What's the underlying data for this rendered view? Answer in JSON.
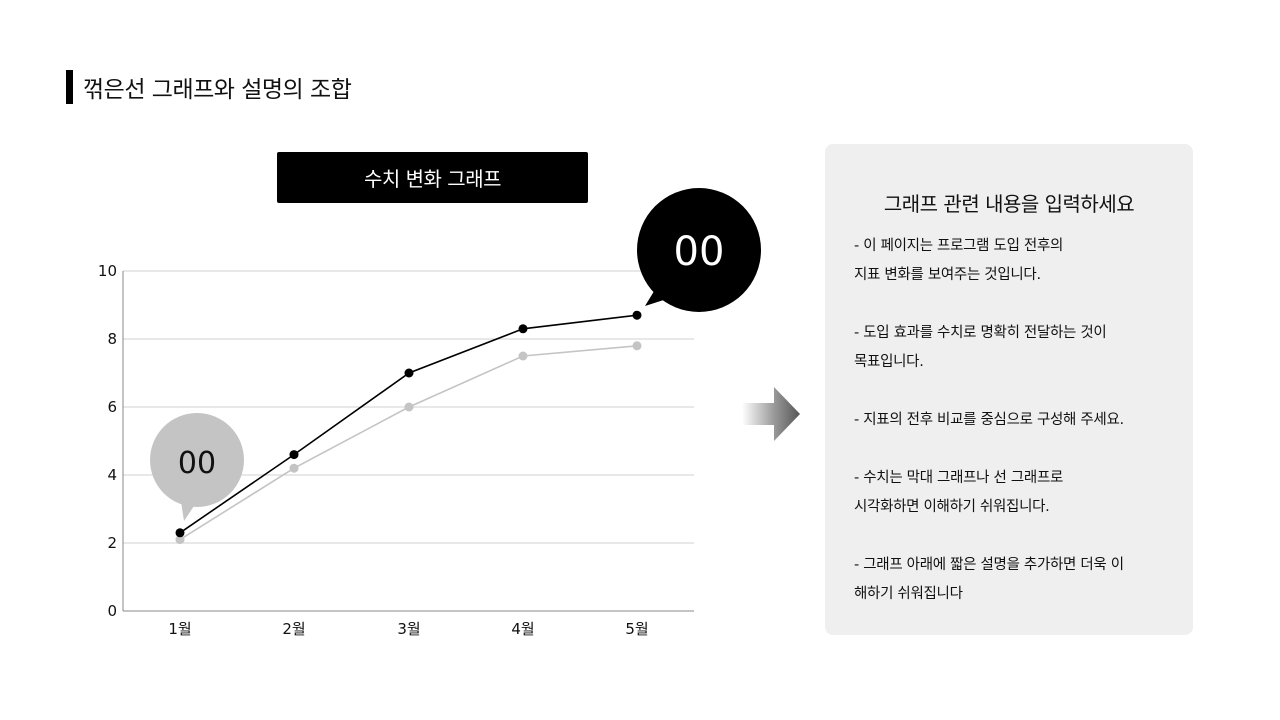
{
  "page": {
    "title": "꺾은선 그래프와 설명의 조합"
  },
  "chart_header": {
    "label": "수치 변화 그래프"
  },
  "callouts": {
    "top_right": "00",
    "bottom_left": "00"
  },
  "panel": {
    "heading": "그래프 관련 내용을 입력하세요",
    "paragraphs": [
      "- 이 페이지는 프로그램 도입 전후의\n지표 변화를 보여주는 것입니다.",
      "- 도입 효과를 수치로 명확히 전달하는 것이\n목표입니다.",
      "- 지표의 전후 비교를 중심으로 구성해 주세요.",
      "- 수치는 막대 그래프나 선 그래프로\n시각화하면 이해하기 쉬워집니다.",
      "- 그래프 아래에 짧은 설명을 추가하면 더욱 이\n해하기 쉬워집니다"
    ]
  },
  "colors": {
    "series_primary": "#000000",
    "series_secondary": "#c4c4c4",
    "grid": "#d0d0d0",
    "panel_bg": "#efefef",
    "header_bg": "#000000"
  },
  "chart_data": {
    "type": "line",
    "title": "수치 변화 그래프",
    "xlabel": "",
    "ylabel": "",
    "categories": [
      "1월",
      "2월",
      "3월",
      "4월",
      "5월"
    ],
    "series": [
      {
        "name": "series-1 (black)",
        "color": "#000000",
        "values": [
          2.3,
          4.6,
          7.0,
          8.3,
          8.7
        ]
      },
      {
        "name": "series-2 (gray)",
        "color": "#c4c4c4",
        "values": [
          2.1,
          4.2,
          6.0,
          7.5,
          7.8
        ]
      }
    ],
    "ylim": [
      0,
      10
    ],
    "yticks": [
      0,
      2,
      4,
      6,
      8,
      10
    ],
    "grid": true,
    "legend": "none",
    "annotations": [
      {
        "text": "00",
        "target": "series-1 5월",
        "style": "black bubble"
      },
      {
        "text": "00",
        "target": "series-2 1월",
        "style": "gray bubble"
      }
    ]
  }
}
